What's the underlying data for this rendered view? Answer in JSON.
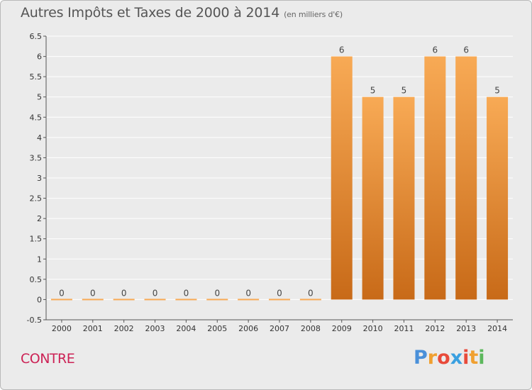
{
  "header": {
    "title": "Autres Impôts et Taxes de 2000 à 2014",
    "unit": "(en milliers d'€)"
  },
  "footer": {
    "commune": "CONTRE",
    "logo_letters": [
      "P",
      "r",
      "o",
      "x",
      "i",
      "t",
      "i"
    ],
    "logo_colors": [
      "#4a90d9",
      "#f0a030",
      "#e84a3a",
      "#3aa0e0",
      "#e84a3a",
      "#f0a030",
      "#5cb85c"
    ]
  },
  "colors": {
    "bar_light": "#f8aa55",
    "bar_dark": "#c86a18",
    "grid": "#ffffff",
    "title": "#555555",
    "commune": "#cc2255"
  },
  "chart_data": {
    "type": "bar",
    "title": "Autres Impôts et Taxes de 2000 à 2014",
    "subtitle": "(en milliers d'€)",
    "categories": [
      "2000",
      "2001",
      "2002",
      "2003",
      "2004",
      "2005",
      "2006",
      "2007",
      "2008",
      "2009",
      "2010",
      "2011",
      "2012",
      "2013",
      "2014"
    ],
    "values": [
      0,
      0,
      0,
      0,
      0,
      0,
      0,
      0,
      0,
      6,
      5,
      5,
      6,
      6,
      5
    ],
    "labels": [
      "0",
      "0",
      "0",
      "0",
      "0",
      "0",
      "0",
      "0",
      "0",
      "6",
      "5",
      "5",
      "6",
      "6",
      "5"
    ],
    "yticks": [
      "-0.5",
      "0",
      "0.5",
      "1",
      "1.5",
      "2",
      "2.5",
      "3",
      "3.5",
      "4",
      "4.5",
      "5",
      "5.5",
      "6",
      "6.5"
    ],
    "ylim": [
      -0.5,
      6.5
    ],
    "grid": true,
    "xlabel": "",
    "ylabel": ""
  }
}
